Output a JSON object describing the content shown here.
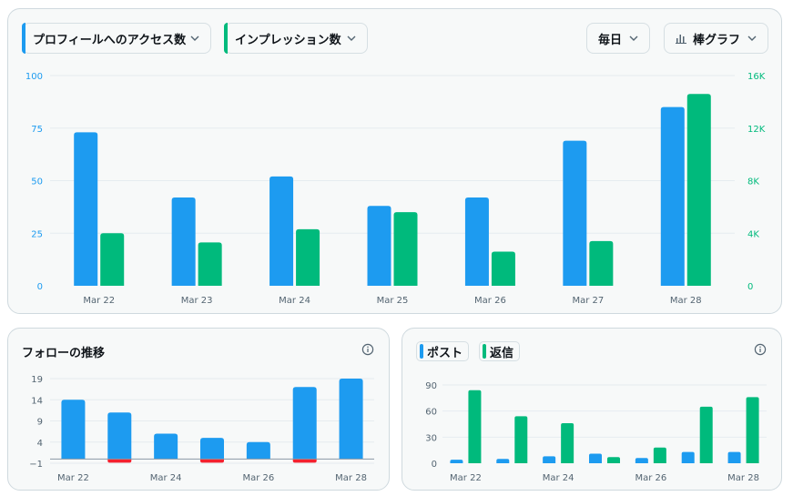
{
  "main": {
    "metric1_label": "プロフィールへのアクセス数",
    "metric2_label": "インプレッション数",
    "period_label": "毎日",
    "charttype_label": "棒グラフ"
  },
  "follow": {
    "title": "フォローの推移"
  },
  "posts": {
    "legend_posts": "ポスト",
    "legend_replies": "返信"
  },
  "colors": {
    "blue": "#1d9bf0",
    "green": "#00ba7c",
    "red": "#f4212e"
  },
  "chart_data": [
    {
      "type": "bar",
      "categories": [
        "Mar 22",
        "Mar 23",
        "Mar 24",
        "Mar 25",
        "Mar 26",
        "Mar 27",
        "Mar 28"
      ],
      "series": [
        {
          "name": "プロフィールへのアクセス数",
          "axis": "left",
          "color": "#1d9bf0",
          "values": [
            73,
            42,
            52,
            38,
            42,
            69,
            85
          ]
        },
        {
          "name": "インプレッション数",
          "axis": "right",
          "color": "#00ba7c",
          "values": [
            4000,
            3300,
            4300,
            5600,
            2600,
            3400,
            14600
          ]
        }
      ],
      "y_left": {
        "ylim": [
          0,
          100
        ],
        "ticks": [
          "0",
          "25",
          "50",
          "75",
          "100"
        ]
      },
      "y_right": {
        "ylim": [
          0,
          16000
        ],
        "ticks": [
          "0",
          "4K",
          "8K",
          "12K",
          "16K"
        ]
      },
      "grid": true
    },
    {
      "type": "bar",
      "title": "フォローの推移",
      "categories": [
        "Mar 22",
        "Mar 23",
        "Mar 24",
        "Mar 25",
        "Mar 26",
        "Mar 27",
        "Mar 28"
      ],
      "x_tick_labels": [
        "Mar 22",
        "",
        "Mar 24",
        "",
        "Mar 26",
        "",
        "Mar 28"
      ],
      "series": [
        {
          "color": "#1d9bf0",
          "values": [
            14,
            11,
            6,
            5,
            4,
            17,
            19
          ]
        },
        {
          "color": "#f4212e",
          "values": [
            0,
            -1,
            0,
            -1,
            0,
            -1,
            0
          ]
        }
      ],
      "ylim": [
        -1,
        19
      ],
      "ticks": [
        "−1",
        "4",
        "9",
        "14",
        "19"
      ],
      "grid": true
    },
    {
      "type": "bar",
      "categories": [
        "Mar 22",
        "Mar 23",
        "Mar 24",
        "Mar 25",
        "Mar 26",
        "Mar 27",
        "Mar 28"
      ],
      "x_tick_labels": [
        "Mar 22",
        "",
        "Mar 24",
        "",
        "Mar 26",
        "",
        "Mar 28"
      ],
      "series": [
        {
          "name": "ポスト",
          "color": "#1d9bf0",
          "values": [
            4,
            5,
            8,
            11,
            6,
            13,
            13
          ]
        },
        {
          "name": "返信",
          "color": "#00ba7c",
          "values": [
            84,
            54,
            46,
            7,
            18,
            65,
            76
          ]
        }
      ],
      "ylim": [
        0,
        90
      ],
      "ticks": [
        "0",
        "30",
        "60",
        "90"
      ],
      "grid": true
    }
  ]
}
